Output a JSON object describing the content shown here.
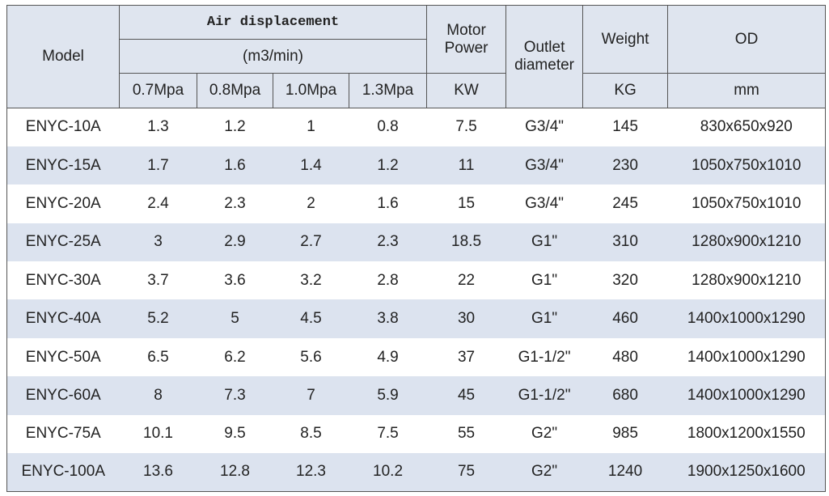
{
  "header": {
    "model": "Model",
    "air_displacement": "Air displacement",
    "unit": "(m3/min)",
    "pressures": [
      "0.7Mpa",
      "0.8Mpa",
      "1.0Mpa",
      "1.3Mpa"
    ],
    "motor_power": "Motor Power",
    "motor_unit": "KW",
    "outlet_diameter": "Outlet diameter",
    "weight": "Weight",
    "weight_unit": "KG",
    "od": "OD",
    "od_unit": "mm"
  },
  "table": {
    "rows": [
      [
        "ENYC-10A",
        "1.3",
        "1.2",
        "1",
        "0.8",
        "7.5",
        "G3/4\"",
        "145",
        "830x650x920"
      ],
      [
        "ENYC-15A",
        "1.7",
        "1.6",
        "1.4",
        "1.2",
        "11",
        "G3/4\"",
        "230",
        "1050x750x1010"
      ],
      [
        "ENYC-20A",
        "2.4",
        "2.3",
        "2",
        "1.6",
        "15",
        "G3/4\"",
        "245",
        "1050x750x1010"
      ],
      [
        "ENYC-25A",
        "3",
        "2.9",
        "2.7",
        "2.3",
        "18.5",
        "G1\"",
        "310",
        "1280x900x1210"
      ],
      [
        "ENYC-30A",
        "3.7",
        "3.6",
        "3.2",
        "2.8",
        "22",
        "G1\"",
        "320",
        "1280x900x1210"
      ],
      [
        "ENYC-40A",
        "5.2",
        "5",
        "4.5",
        "3.8",
        "30",
        "G1\"",
        "460",
        "1400x1000x1290"
      ],
      [
        "ENYC-50A",
        "6.5",
        "6.2",
        "5.6",
        "4.9",
        "37",
        "G1-1/2\"",
        "480",
        "1400x1000x1290"
      ],
      [
        "ENYC-60A",
        "8",
        "7.3",
        "7",
        "5.9",
        "45",
        "G1-1/2\"",
        "680",
        "1400x1000x1290"
      ],
      [
        "ENYC-75A",
        "10.1",
        "9.5",
        "8.5",
        "7.5",
        "55",
        "G2\"",
        "985",
        "1800x1200x1550"
      ],
      [
        "ENYC-100A",
        "13.6",
        "12.8",
        "12.3",
        "10.2",
        "75",
        "G2\"",
        "1240",
        "1900x1250x1600"
      ]
    ]
  }
}
